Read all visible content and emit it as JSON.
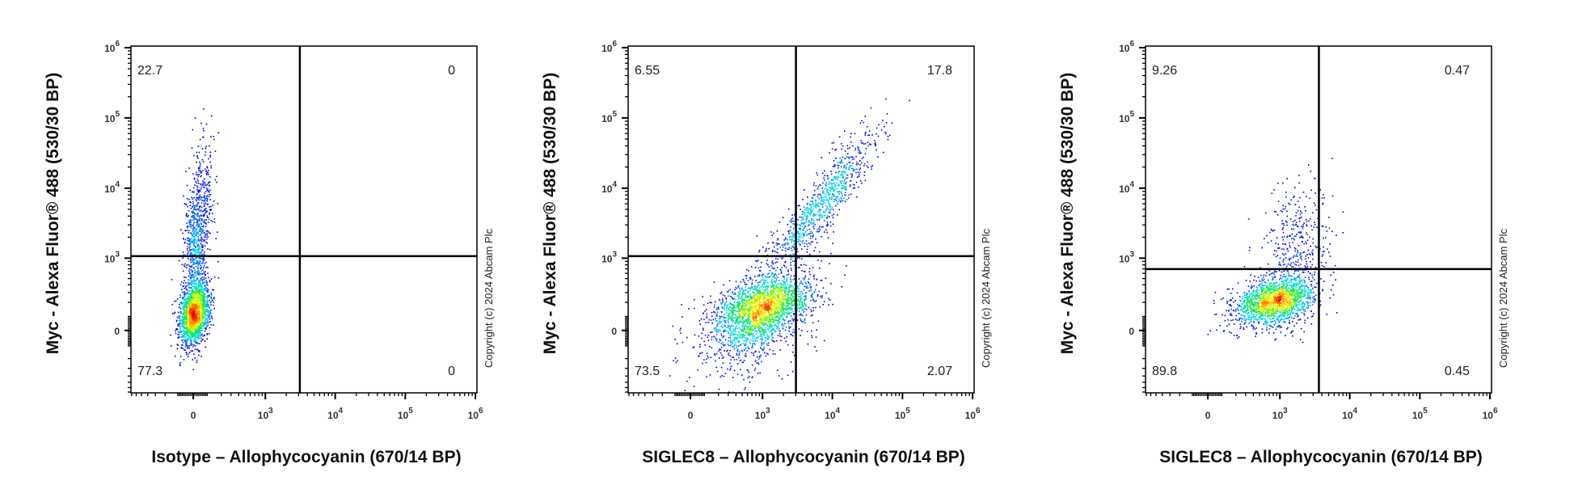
{
  "watermark": "Copyright (c) 2024 Abcam Plc",
  "colors": {
    "frame": "#000000",
    "density_low": "#00008b",
    "density_mid": "#00ff00",
    "density_high": "#ff0000"
  },
  "chart_data": [
    {
      "type": "scatter",
      "style": "density dot plot with quadrant gates",
      "xlabel": "Isotype – Allophycocyanin (670/14 BP)",
      "ylabel": "Myc - Alexa Fluor® 488 (530/30 BP)",
      "x_scale": "biexponential",
      "y_scale": "biexponential",
      "xlim": [
        -720,
        1050000
      ],
      "ylim": [
        -720,
        1050000
      ],
      "x_ticks": [
        {
          "value": 0,
          "label": "0",
          "sup": ""
        },
        {
          "value": 1000,
          "label": "10",
          "sup": "3"
        },
        {
          "value": 10000,
          "label": "10",
          "sup": "4"
        },
        {
          "value": 100000,
          "label": "10",
          "sup": "5"
        },
        {
          "value": 1000000,
          "label": "10",
          "sup": "6"
        }
      ],
      "y_ticks": [
        {
          "value": 0,
          "label": "0",
          "sup": ""
        },
        {
          "value": 1000,
          "label": "10",
          "sup": "3"
        },
        {
          "value": 10000,
          "label": "10",
          "sup": "4"
        },
        {
          "value": 100000,
          "label": "10",
          "sup": "5"
        },
        {
          "value": 1000000,
          "label": "10",
          "sup": "6"
        }
      ],
      "gate": {
        "x": 3130,
        "y": 1070
      },
      "quadrants": {
        "upper_left": "22.7",
        "upper_right": "0",
        "lower_left": "77.3",
        "lower_right": "0"
      },
      "populations": [
        {
          "center": [
            6,
            113
          ],
          "x_range": [
            -41,
            54
          ],
          "y_range": [
            11,
            246
          ],
          "corr": 0.3,
          "count": 1800
        },
        {
          "center": [
            22,
            2020
          ],
          "x_range": [
            -22,
            65
          ],
          "y_range": [
            501,
            7940
          ],
          "corr": 0.4,
          "count": 900
        }
      ]
    },
    {
      "type": "scatter",
      "style": "density dot plot with quadrant gates",
      "xlabel": "SIGLEC8 – Allophycocyanin (670/14 BP)",
      "ylabel": "Myc - Alexa Fluor® 488 (530/30 BP)",
      "x_scale": "biexponential",
      "y_scale": "biexponential",
      "xlim": [
        -720,
        1050000
      ],
      "ylim": [
        -720,
        1050000
      ],
      "x_ticks": [
        {
          "value": 0,
          "label": "0",
          "sup": ""
        },
        {
          "value": 1000,
          "label": "10",
          "sup": "3"
        },
        {
          "value": 10000,
          "label": "10",
          "sup": "4"
        },
        {
          "value": 100000,
          "label": "10",
          "sup": "5"
        },
        {
          "value": 1000000,
          "label": "10",
          "sup": "6"
        }
      ],
      "y_ticks": [
        {
          "value": 0,
          "label": "0",
          "sup": ""
        },
        {
          "value": 1000,
          "label": "10",
          "sup": "3"
        },
        {
          "value": 10000,
          "label": "10",
          "sup": "4"
        },
        {
          "value": 100000,
          "label": "10",
          "sup": "5"
        },
        {
          "value": 1000000,
          "label": "10",
          "sup": "6"
        }
      ],
      "gate": {
        "x": 3020,
        "y": 1070
      },
      "quadrants": {
        "upper_left": "6.55",
        "upper_right": "17.8",
        "lower_left": "73.5",
        "lower_right": "2.07"
      },
      "populations": [
        {
          "center": [
            996,
            161
          ],
          "x_range": [
            433,
            2230
          ],
          "y_range": [
            39,
            337
          ],
          "corr": 0.4,
          "count": 2200
        },
        {
          "center": [
            7090,
            6300
          ],
          "x_range": [
            2860,
            17650
          ],
          "y_range": [
            2020,
            19700
          ],
          "corr": 0.9,
          "count": 900
        },
        {
          "center": [
            501,
            -66
          ],
          "x_range": [
            167,
            1280
          ],
          "y_range": [
            -229,
            66
          ],
          "corr": 0.2,
          "count": 350
        }
      ]
    },
    {
      "type": "scatter",
      "style": "density dot plot with quadrant gates",
      "xlabel": "SIGLEC8 – Allophycocyanin (670/14 BP)",
      "ylabel": "Myc - Alexa Fluor® 488 (530/30 BP)",
      "x_scale": "biexponential",
      "y_scale": "biexponential",
      "xlim": [
        -720,
        1050000
      ],
      "ylim": [
        -720,
        1050000
      ],
      "x_ticks": [
        {
          "value": 0,
          "label": "0",
          "sup": ""
        },
        {
          "value": 1000,
          "label": "10",
          "sup": "3"
        },
        {
          "value": 10000,
          "label": "10",
          "sup": "4"
        },
        {
          "value": 100000,
          "label": "10",
          "sup": "5"
        },
        {
          "value": 1000000,
          "label": "10",
          "sup": "6"
        }
      ],
      "y_ticks": [
        {
          "value": 0,
          "label": "0",
          "sup": ""
        },
        {
          "value": 1000,
          "label": "10",
          "sup": "3"
        },
        {
          "value": 10000,
          "label": "10",
          "sup": "4"
        },
        {
          "value": 100000,
          "label": "10",
          "sup": "5"
        },
        {
          "value": 1000000,
          "label": "10",
          "sup": "6"
        }
      ],
      "gate": {
        "x": 3630,
        "y": 692
      },
      "quadrants": {
        "upper_left": "9.26",
        "upper_right": "0.47",
        "lower_left": "89.8",
        "lower_right": "0.45"
      },
      "populations": [
        {
          "center": [
            826,
            209
          ],
          "x_range": [
            403,
            1650
          ],
          "y_range": [
            111,
            340
          ],
          "corr": 0.3,
          "count": 1700
        },
        {
          "center": [
            1610,
            1440
          ],
          "x_range": [
            904,
            2860
          ],
          "y_range": [
            501,
            4010
          ],
          "corr": 0.3,
          "count": 400
        }
      ]
    }
  ]
}
